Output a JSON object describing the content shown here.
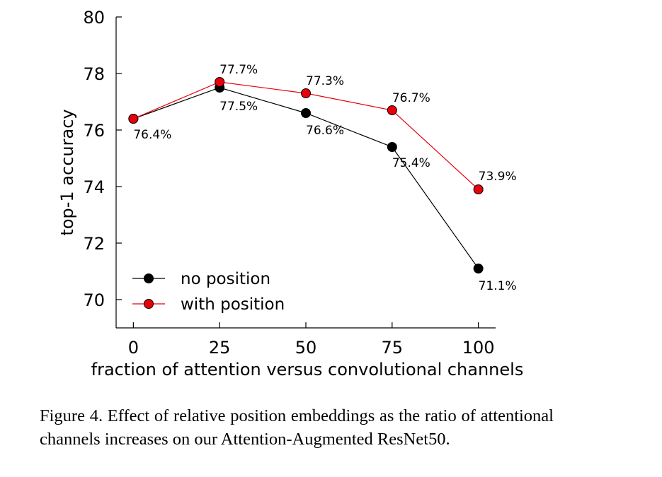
{
  "chart_data": {
    "type": "line",
    "title": "",
    "xlabel": "fraction of attention versus convolutional channels",
    "ylabel": "top-1 accuracy",
    "x": [
      0,
      25,
      50,
      75,
      100
    ],
    "xlim": [
      -5,
      105
    ],
    "ylim": [
      69,
      80
    ],
    "xticks": [
      0,
      25,
      50,
      75,
      100
    ],
    "yticks": [
      70,
      72,
      74,
      76,
      78,
      80
    ],
    "grid": false,
    "legend_position": "bottom-left",
    "series": [
      {
        "name": "no position",
        "color": "#000000",
        "values": [
          76.4,
          77.5,
          76.6,
          75.4,
          71.1
        ],
        "labels": [
          "76.4%",
          "77.5%",
          "76.6%",
          "75.4%",
          "71.1%"
        ]
      },
      {
        "name": "with position",
        "color": "#e8000b",
        "values": [
          76.4,
          77.7,
          77.3,
          76.7,
          73.9
        ],
        "labels": [
          "",
          "77.7%",
          "77.3%",
          "76.7%",
          "73.9%"
        ]
      }
    ]
  },
  "caption": "Figure 4. Effect of relative position embeddings as the ratio of attentional channels increases on our Attention-Augmented ResNet50."
}
